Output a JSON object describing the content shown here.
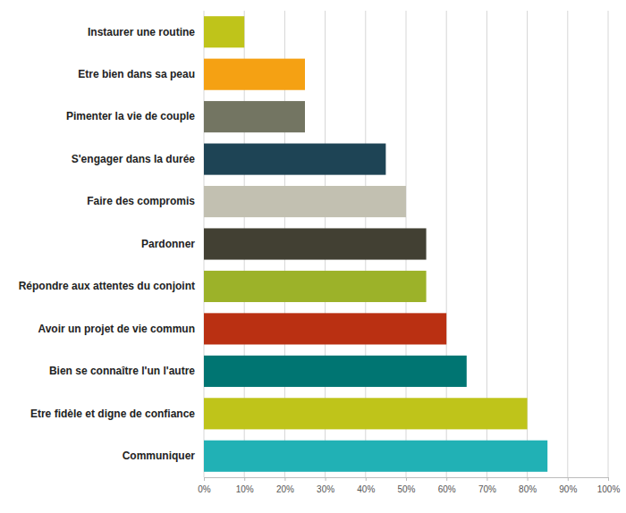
{
  "chart_data": {
    "type": "bar",
    "orientation": "horizontal",
    "categories": [
      "Instaurer une routine",
      "Etre bien dans sa peau",
      "Pimenter la vie de couple",
      "S'engager dans la durée",
      "Faire des compromis",
      "Pardonner",
      "Répondre aux attentes du conjoint",
      "Avoir un projet de vie commun",
      "Bien se connaître l'un l'autre",
      "Etre fidèle et digne de confiance",
      "Communiquer"
    ],
    "values": [
      10,
      25,
      25,
      45,
      50,
      55,
      55,
      60,
      65,
      80,
      85
    ],
    "colors": [
      "#bfc41a",
      "#f5a113",
      "#737562",
      "#1e4455",
      "#c2c0b1",
      "#424033",
      "#9cb229",
      "#ba3012",
      "#007572",
      "#bfc41a",
      "#21b1b5"
    ],
    "xlim": [
      0,
      100
    ],
    "xticks": [
      {
        "value": 0,
        "label": "0%"
      },
      {
        "value": 10,
        "label": "10%"
      },
      {
        "value": 20,
        "label": "20%"
      },
      {
        "value": 30,
        "label": "30%"
      },
      {
        "value": 40,
        "label": "40%"
      },
      {
        "value": 50,
        "label": "50%"
      },
      {
        "value": 60,
        "label": "60%"
      },
      {
        "value": 70,
        "label": "70%"
      },
      {
        "value": 80,
        "label": "80%"
      },
      {
        "value": 90,
        "label": "90%"
      },
      {
        "value": 100,
        "label": "100%"
      }
    ],
    "grid": true
  }
}
